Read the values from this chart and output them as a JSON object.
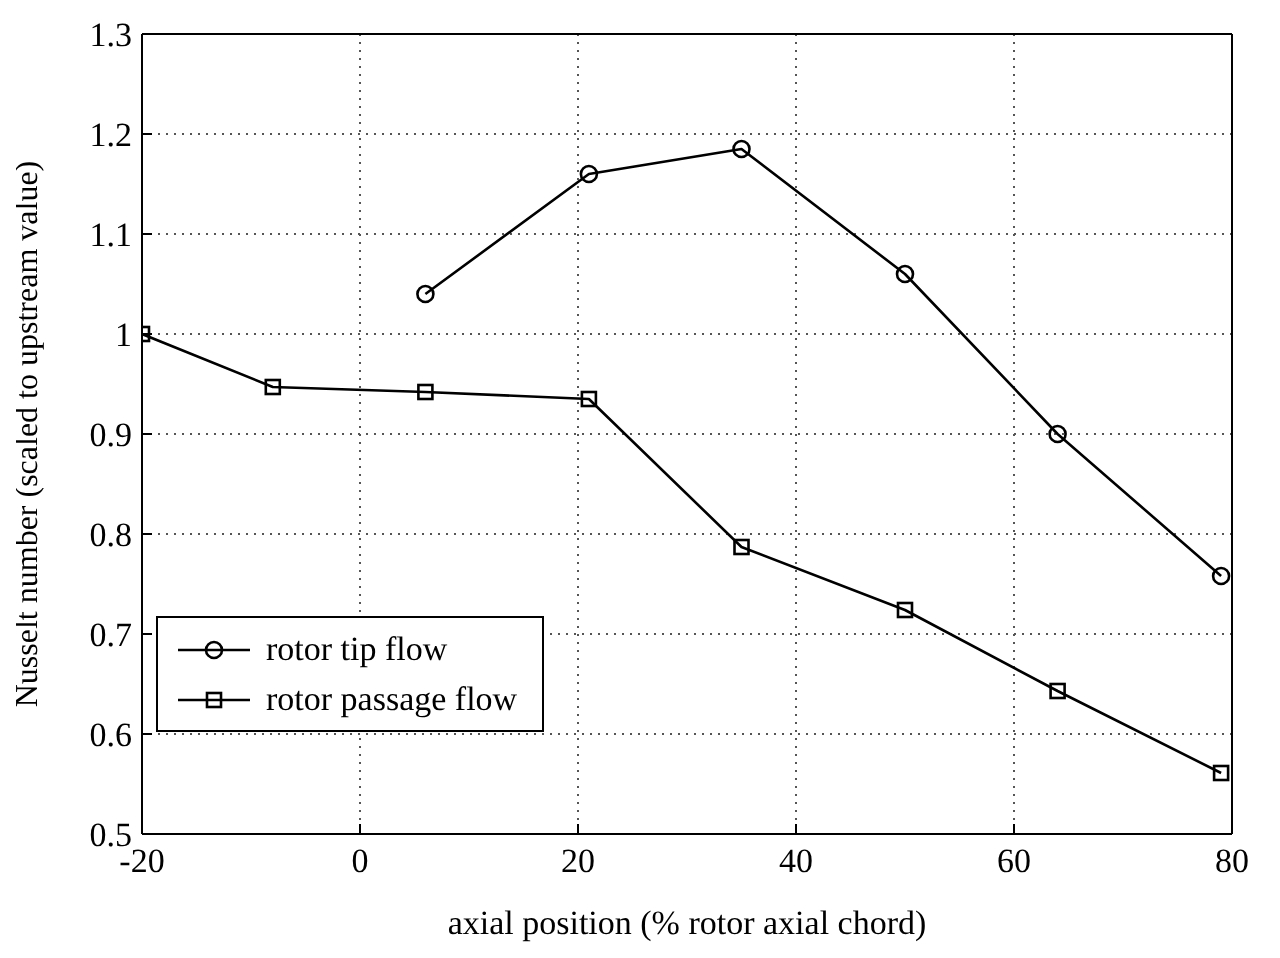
{
  "chart_data": {
    "type": "line",
    "xlabel": "axial position (% rotor axial chord)",
    "ylabel": "Nusselt number (scaled to upstream value)",
    "xlim": [
      -20,
      80
    ],
    "xticks": [
      -20,
      0,
      20,
      40,
      60,
      80
    ],
    "ylim": [
      0.5,
      1.3
    ],
    "yticks": [
      0.5,
      0.6,
      0.7,
      0.8,
      0.9,
      1,
      1.1,
      1.2,
      1.3
    ],
    "grid": true,
    "legend": "bottom left",
    "line_style": "solid",
    "series": [
      {
        "name": "rotor tip flow",
        "color": "#000000",
        "marker": "circle",
        "x": [
          6,
          21,
          35,
          50,
          64,
          79
        ],
        "values": [
          1.04,
          1.16,
          1.185,
          1.06,
          0.9,
          0.758
        ]
      },
      {
        "name": "rotor passage flow",
        "color": "#000000",
        "marker": "square",
        "x": [
          -20,
          -8,
          6,
          21,
          35,
          50,
          64,
          79
        ],
        "values": [
          1.0,
          0.947,
          0.942,
          0.935,
          0.787,
          0.724,
          0.643,
          0.561
        ]
      }
    ]
  }
}
